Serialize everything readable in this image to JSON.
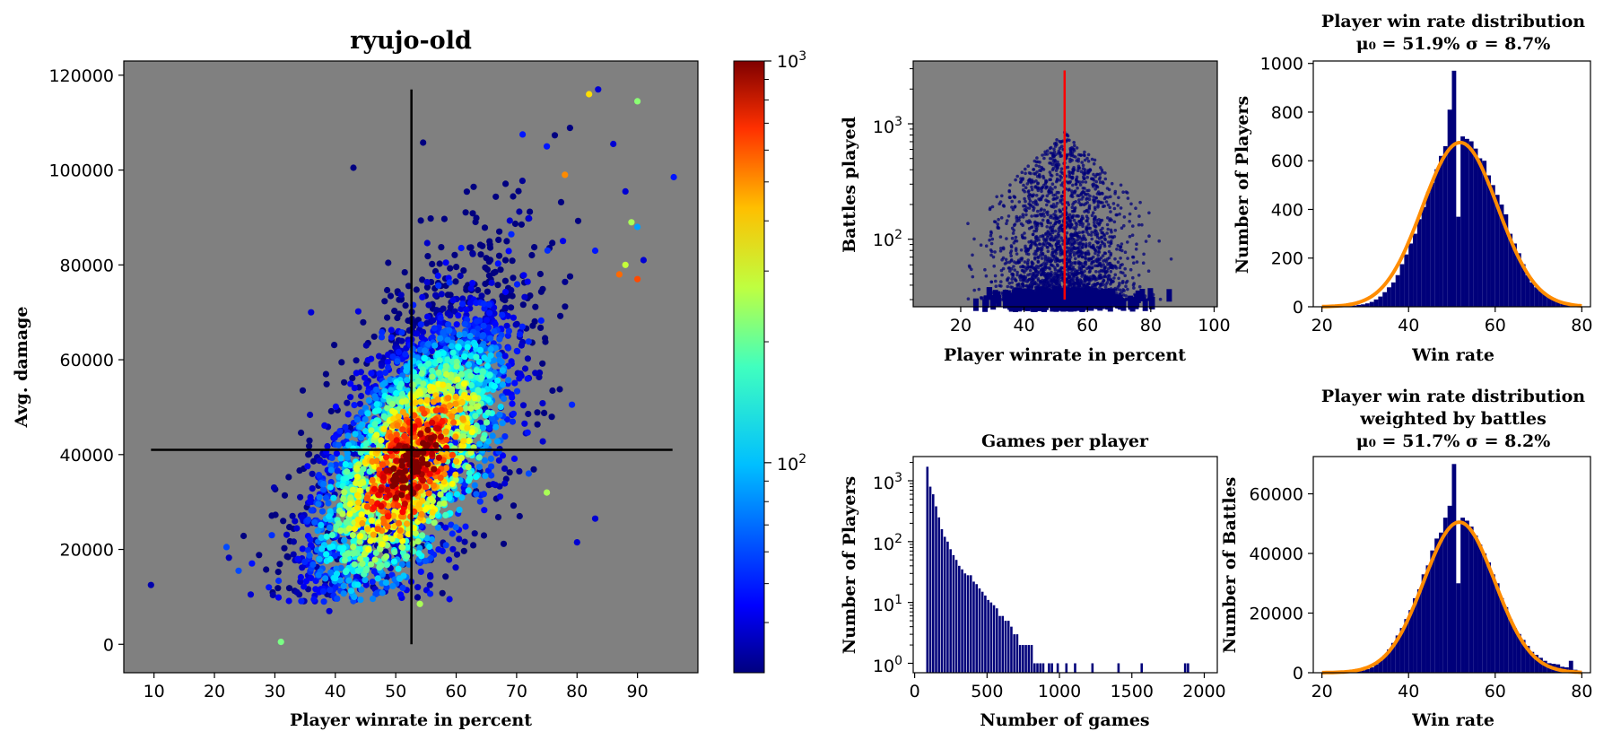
{
  "chart_data": [
    {
      "id": "main-scatter",
      "type": "scatter",
      "title": "ryujo-old",
      "xlabel": "Player winrate in percent",
      "ylabel": "Avg. damage",
      "xlim": [
        5,
        100
      ],
      "ylim": [
        -6000,
        123000
      ],
      "xticks": [
        10,
        20,
        30,
        40,
        50,
        60,
        70,
        80,
        90
      ],
      "yticks": [
        0,
        20000,
        40000,
        60000,
        80000,
        100000,
        120000
      ],
      "background": "#808080",
      "mean_winrate": 52.6,
      "mean_damage": 41000,
      "vline_range": [
        0,
        117000
      ],
      "hline_range": [
        9.5,
        95.8
      ],
      "colorbar": {
        "scale": "log",
        "min": 30,
        "max": 1000,
        "tick_labels": [
          "10^3",
          "10^2"
        ],
        "tick_values": [
          1000,
          100
        ],
        "colormap": "jet"
      },
      "points": [
        [
          9.5,
          12500,
          35
        ],
        [
          31,
          500,
          170
        ],
        [
          96,
          98500,
          50
        ],
        [
          90,
          114500,
          180
        ],
        [
          82,
          116000,
          300
        ],
        [
          83.5,
          117000,
          40
        ],
        [
          86,
          105500,
          40
        ],
        [
          88,
          95500,
          40
        ],
        [
          89,
          89000,
          200
        ],
        [
          90,
          88000,
          80
        ],
        [
          90,
          77000,
          500
        ],
        [
          87,
          78000,
          450
        ],
        [
          88,
          80000,
          220
        ],
        [
          91,
          81000,
          40
        ],
        [
          83,
          83000,
          50
        ],
        [
          78,
          99000,
          400
        ],
        [
          75,
          105000,
          50
        ],
        [
          71,
          107500,
          50
        ],
        [
          43,
          100500,
          30
        ],
        [
          36,
          70000,
          40
        ],
        [
          22,
          20500,
          60
        ],
        [
          24,
          15500,
          60
        ],
        [
          26,
          10500,
          40
        ],
        [
          29,
          12000,
          50
        ],
        [
          39,
          7000,
          40
        ],
        [
          54,
          8500,
          200
        ],
        [
          80,
          21500,
          40
        ],
        [
          83,
          26500,
          40
        ],
        [
          75,
          32000,
          200
        ],
        [
          72,
          36000,
          60
        ]
      ],
      "cluster_seed": 7,
      "cluster_count": 3800
    },
    {
      "id": "battles-scatter",
      "type": "scatter",
      "title": "",
      "xlabel": "Player winrate in percent",
      "ylabel": "Battles played",
      "xlim": [
        5,
        101
      ],
      "ylog": true,
      "ylim": [
        26,
        3500
      ],
      "xticks": [
        20,
        40,
        60,
        80,
        100
      ],
      "ytick_labels": [
        "10^2",
        "10^3"
      ],
      "ytick_values": [
        100,
        1000
      ],
      "background": "#808080",
      "mean_winrate": 52.8,
      "mean_line_top": 2900
    },
    {
      "id": "winrate-hist",
      "type": "bar",
      "title": "Player win rate distribution",
      "subtitle": "μ₀ = 51.9%   σ = 8.7%",
      "xlabel": "Win rate",
      "ylabel": "Number of Players",
      "xlim": [
        18,
        82
      ],
      "ylim": [
        0,
        1010
      ],
      "xticks": [
        20,
        40,
        60,
        80
      ],
      "yticks": [
        0,
        200,
        400,
        600,
        800,
        1000
      ],
      "bin_width": 1,
      "bin_start": 20,
      "values": [
        0,
        0,
        1,
        2,
        1,
        3,
        3,
        5,
        8,
        10,
        14,
        20,
        30,
        42,
        60,
        80,
        100,
        130,
        175,
        215,
        260,
        300,
        360,
        410,
        470,
        510,
        565,
        620,
        660,
        810,
        970,
        370,
        700,
        690,
        680,
        650,
        610,
        600,
        540,
        500,
        460,
        420,
        380,
        300,
        260,
        220,
        175,
        130,
        100,
        80,
        65,
        50,
        40,
        30,
        22,
        15,
        10,
        8,
        5,
        3
      ],
      "fit": {
        "mu": 51.9,
        "sigma": 8.7,
        "peak": 675
      }
    },
    {
      "id": "games-hist",
      "type": "bar",
      "title": "Games per player",
      "xlabel": "Number of games",
      "ylabel": "Number of Players",
      "xlim": [
        -10,
        2090
      ],
      "ylog": true,
      "ylim": [
        0.7,
        2500
      ],
      "xticks": [
        0,
        500,
        1000,
        1500,
        2000
      ],
      "ytick_labels": [
        "10^0",
        "10^1",
        "10^2",
        "10^3"
      ],
      "ytick_values": [
        1,
        10,
        100,
        1000
      ],
      "bin_width": 20,
      "bin_start": 80,
      "values": [
        1700,
        800,
        600,
        380,
        250,
        160,
        120,
        100,
        75,
        60,
        50,
        40,
        35,
        30,
        28,
        28,
        22,
        20,
        17,
        15,
        13,
        11,
        10,
        9,
        8,
        6,
        6,
        5,
        5,
        4,
        3,
        3,
        2,
        2,
        2,
        2,
        2,
        1,
        1,
        1,
        1,
        0,
        1,
        1,
        0,
        1,
        0,
        0,
        1,
        0,
        0,
        1,
        0,
        0,
        0,
        0,
        0,
        1,
        0,
        0,
        0,
        0,
        0,
        0,
        0,
        0,
        1,
        0,
        0,
        0,
        0,
        0,
        0,
        0,
        1,
        0,
        0,
        0,
        0,
        0,
        0,
        0,
        0,
        0,
        0,
        0,
        0,
        0,
        0,
        1,
        1
      ]
    },
    {
      "id": "weighted-hist",
      "type": "bar",
      "title": "Player win rate distribution",
      "title_line2": "weighted by battles",
      "subtitle": "μ₀ = 51.7%   σ = 8.2%",
      "xlabel": "Win rate",
      "ylabel": "Number of Battles",
      "xlim": [
        18,
        82
      ],
      "ylim": [
        0,
        72500
      ],
      "xticks": [
        20,
        40,
        60,
        80
      ],
      "yticks": [
        0,
        20000,
        40000,
        60000
      ],
      "bin_width": 1,
      "bin_start": 20,
      "values": [
        0,
        0,
        0,
        100,
        100,
        200,
        300,
        400,
        600,
        800,
        1200,
        1800,
        2800,
        4000,
        5800,
        7800,
        10000,
        12500,
        15000,
        18000,
        21000,
        25000,
        28000,
        33000,
        36000,
        41000,
        45000,
        47000,
        52000,
        56000,
        70000,
        30000,
        52000,
        51000,
        49000,
        46000,
        43000,
        40000,
        37000,
        33000,
        30000,
        25000,
        22000,
        18000,
        15000,
        13000,
        11000,
        9000,
        7000,
        6000,
        5000,
        4000,
        3200,
        3000,
        2800,
        2000,
        1800,
        4000,
        1000,
        500
      ],
      "fit": {
        "mu": 51.7,
        "sigma": 8.2,
        "peak": 50500
      }
    }
  ]
}
